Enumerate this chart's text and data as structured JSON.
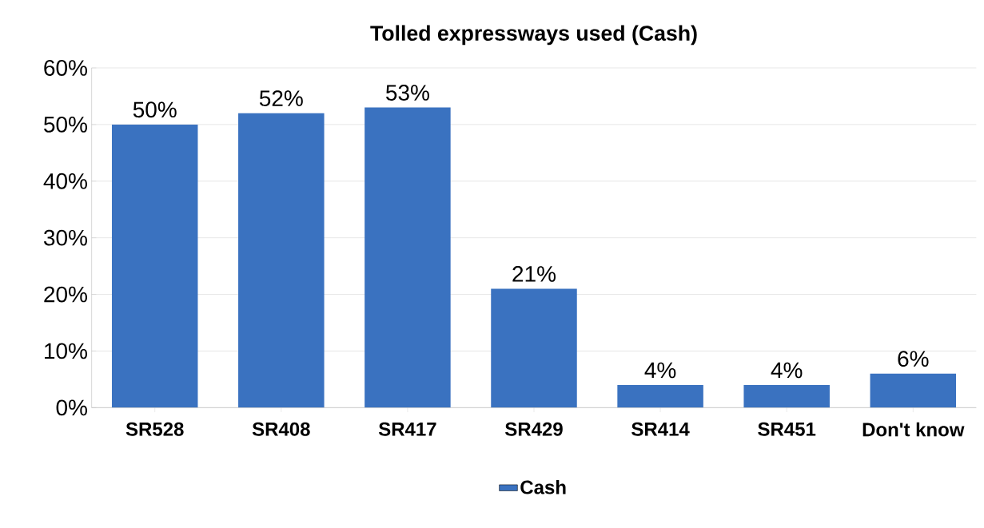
{
  "chart_data": {
    "type": "bar",
    "title": "Tolled expressways used (Cash)",
    "categories": [
      "SR528",
      "SR408",
      "SR417",
      "SR429",
      "SR414",
      "SR451",
      "Don't know"
    ],
    "series": [
      {
        "name": "Cash",
        "color": "#3a72c0",
        "values": [
          50,
          52,
          53,
          21,
          4,
          4,
          6
        ]
      }
    ],
    "value_labels": [
      "50%",
      "52%",
      "53%",
      "21%",
      "4%",
      "4%",
      "6%"
    ],
    "ylim": [
      0,
      60
    ],
    "yticks": [
      {
        "value": 0,
        "label": "0%"
      },
      {
        "value": 10,
        "label": "10%"
      },
      {
        "value": 20,
        "label": "20%"
      },
      {
        "value": 30,
        "label": "30%"
      },
      {
        "value": 40,
        "label": "40%"
      },
      {
        "value": 50,
        "label": "50%"
      },
      {
        "value": 60,
        "label": "60%"
      }
    ],
    "grid": "y",
    "legend": "bottom"
  }
}
